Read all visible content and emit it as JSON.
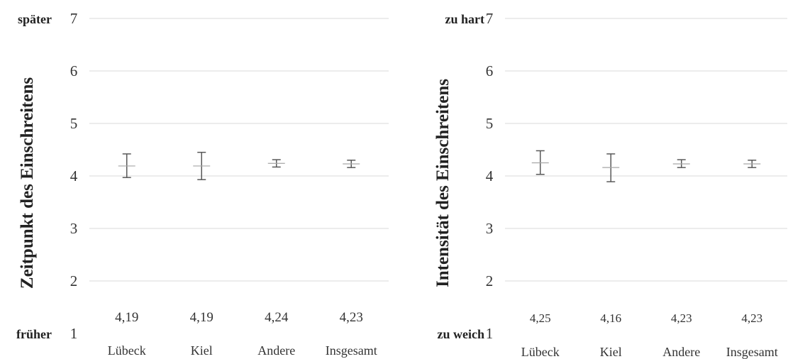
{
  "chart_data": [
    {
      "type": "errorbar",
      "ylabel": "Zeitpunkt des Einschreitens",
      "ylim": [
        1,
        7
      ],
      "yticks": [
        1,
        2,
        3,
        4,
        5,
        6,
        7
      ],
      "scale_low_label": "früher",
      "scale_high_label": "später",
      "categories": [
        "Lübeck",
        "Kiel",
        "Andere",
        "Insgesamt"
      ],
      "means": [
        4.19,
        4.19,
        4.24,
        4.23
      ],
      "value_labels": [
        "4,19",
        "4,19",
        "4,24",
        "4,23"
      ],
      "ci_lower": [
        3.97,
        3.93,
        4.17,
        4.16
      ],
      "ci_upper": [
        4.42,
        4.45,
        4.31,
        4.3
      ],
      "grid": true
    },
    {
      "type": "errorbar",
      "ylabel": "Intensität des Einschreitens",
      "ylim": [
        1,
        7
      ],
      "yticks": [
        1,
        2,
        3,
        4,
        5,
        6,
        7
      ],
      "scale_low_label": "zu weich",
      "scale_high_label": "zu hart",
      "categories": [
        "Lübeck",
        "Kiel",
        "Andere",
        "Insgesamt"
      ],
      "means": [
        4.25,
        4.16,
        4.23,
        4.23
      ],
      "value_labels": [
        "4,25",
        "4,16",
        "4,23",
        "4,23"
      ],
      "ci_lower": [
        4.03,
        3.89,
        4.16,
        4.16
      ],
      "ci_upper": [
        4.48,
        4.42,
        4.31,
        4.3
      ],
      "grid": true
    }
  ]
}
